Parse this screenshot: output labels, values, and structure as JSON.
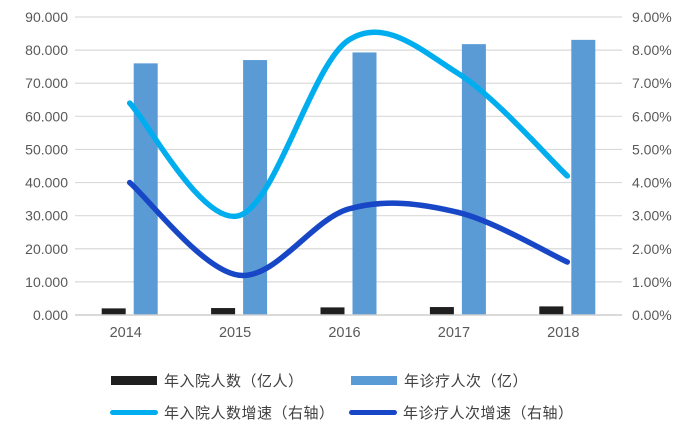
{
  "chart_data": {
    "type": "combo-bar-line",
    "title": "",
    "categories": [
      "2014",
      "2015",
      "2016",
      "2017",
      "2018"
    ],
    "series": [
      {
        "name": "年入院人数（亿人）",
        "type": "bar",
        "axis": "left",
        "color": "#1f1f1f",
        "values": [
          2.0,
          2.1,
          2.3,
          2.4,
          2.6
        ]
      },
      {
        "name": "年诊疗人次（亿）",
        "type": "bar",
        "axis": "left",
        "color": "#5b9bd5",
        "values": [
          76.0,
          77.0,
          79.3,
          81.8,
          83.1
        ]
      },
      {
        "name": "年入院人数增速（右轴）",
        "type": "line",
        "axis": "right",
        "color": "#00aeef",
        "values": [
          6.4,
          3.0,
          8.3,
          7.3,
          4.2
        ]
      },
      {
        "name": "年诊疗人次增速（右轴）",
        "type": "line",
        "axis": "right",
        "color": "#1747c6",
        "values": [
          4.0,
          1.2,
          3.2,
          3.1,
          1.6
        ]
      }
    ],
    "left_axis": {
      "min": 0,
      "max": 90,
      "step": 10,
      "tick_labels": [
        "0.000",
        "10.000",
        "20.000",
        "30.000",
        "40.000",
        "50.000",
        "60.000",
        "70.000",
        "80.000",
        "90.000"
      ]
    },
    "right_axis": {
      "min": 0,
      "max": 9,
      "step": 1,
      "tick_labels": [
        "0.00%",
        "1.00%",
        "2.00%",
        "3.00%",
        "4.00%",
        "5.00%",
        "6.00%",
        "7.00%",
        "8.00%",
        "9.00%"
      ]
    },
    "grid": true,
    "legend_position": "bottom",
    "colors": {
      "grid_line": "#d9d9d9",
      "axis_line": "#d0d0d0",
      "tick_label": "#595959",
      "background": "#ffffff"
    }
  }
}
